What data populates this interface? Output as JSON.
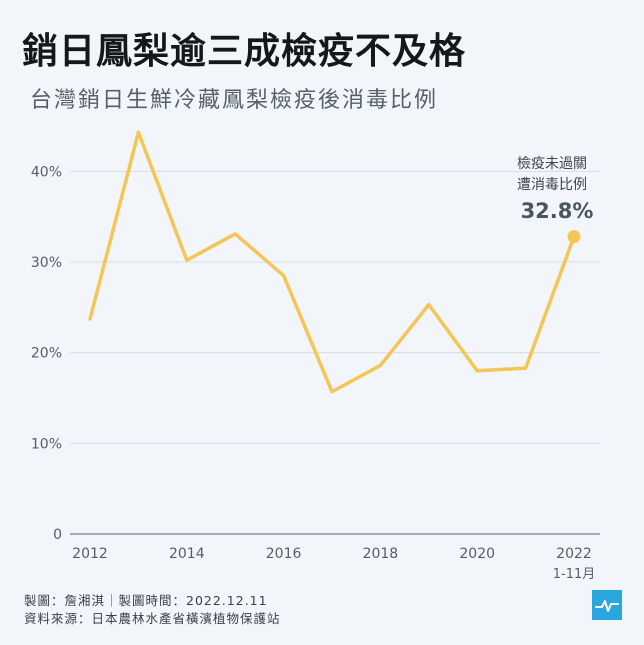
{
  "header": {
    "title": "銷日鳳梨逾三成檢疫不及格",
    "subtitle": "台灣銷日生鮮冷藏鳳梨檢疫後消毒比例"
  },
  "chart_data": {
    "type": "line",
    "title": "銷日鳳梨逾三成檢疫不及格",
    "subtitle": "台灣銷日生鮮冷藏鳳梨檢疫後消毒比例",
    "x": [
      2012,
      2013,
      2014,
      2015,
      2016,
      2017,
      2018,
      2019,
      2020,
      2021,
      2022
    ],
    "series": [
      {
        "values": [
          23.7,
          44.3,
          30.2,
          33.1,
          28.5,
          15.7,
          18.6,
          25.3,
          18.0,
          18.3,
          32.8
        ]
      }
    ],
    "x_ticks": [
      "2012",
      "2014",
      "2016",
      "2018",
      "2020",
      "2022"
    ],
    "x_tick_values": [
      2012,
      2014,
      2016,
      2018,
      2020,
      2022
    ],
    "x_last_sublabel": "1-11月",
    "y_ticks": [
      "0",
      "10%",
      "20%",
      "30%",
      "40%"
    ],
    "y_tick_values": [
      0,
      10,
      20,
      30,
      40
    ],
    "ylim": [
      0,
      45
    ],
    "xlim": [
      2012,
      2022
    ],
    "grid": true,
    "line_color": "#f5c556",
    "annotation": {
      "line1": "檢疫未過關",
      "line2": "遭消毒比例",
      "value": "32.8%"
    }
  },
  "footer": {
    "credit": "製圖：詹湘淇｜製圖時間：2022.12.11",
    "source": "資料來源：日本農林水產省橫濱植物保護站"
  },
  "logo": {
    "icon": "pulse-line-icon",
    "color": "#2aa6df"
  }
}
